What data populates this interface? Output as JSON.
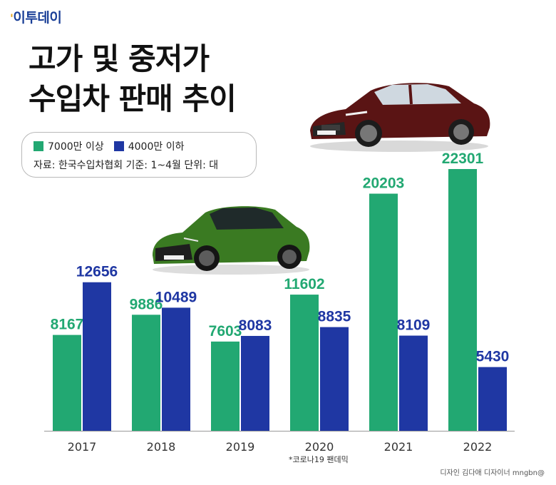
{
  "brand": "이투데이",
  "title_lines": [
    "고가 및 중저가",
    "수입차 판매 추이"
  ],
  "legend": {
    "items": [
      {
        "label": "7000만 이상",
        "color": "#22a872"
      },
      {
        "label": "4000만 이하",
        "color": "#1f37a3"
      }
    ],
    "source": "자료: 한국수입차협회 기준: 1~4월 단위: 대"
  },
  "footnote": "*코로나19 팬데믹",
  "credit": "디자인 김다애 디자이너 mngbn@",
  "chart_data": {
    "type": "bar",
    "categories": [
      "2017",
      "2018",
      "2019",
      "2020",
      "2021",
      "2022"
    ],
    "series": [
      {
        "name": "7000만 이상",
        "color": "#22a872",
        "values": [
          8167,
          9886,
          7603,
          11602,
          20203,
          22301
        ]
      },
      {
        "name": "4000만 이하",
        "color": "#1f37a3",
        "values": [
          12656,
          10489,
          8083,
          8835,
          8109,
          5430
        ]
      }
    ],
    "value_labels": true,
    "ylim": [
      0,
      25000
    ],
    "grid": false
  }
}
